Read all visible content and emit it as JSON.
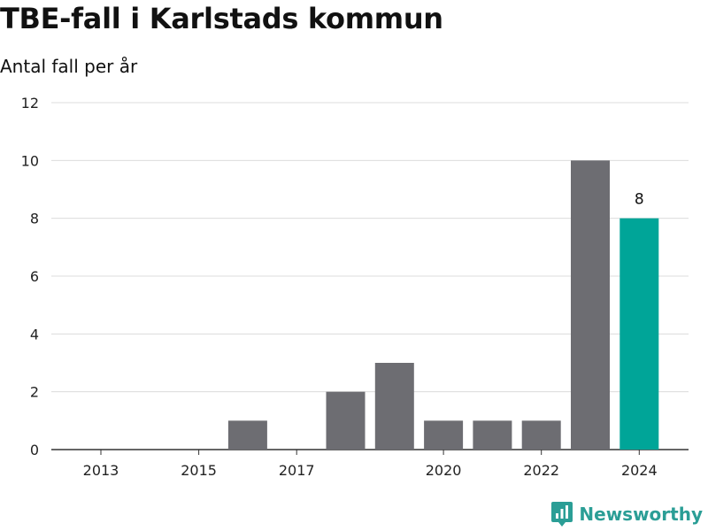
{
  "title": "TBE-fall i Karlstads kommun",
  "subtitle": "Antal fall per år",
  "brand": {
    "name": "Newsworthy",
    "icon": "newsworthy-logo-icon"
  },
  "colors": {
    "bar": "#6d6d72",
    "highlight": "#00a598",
    "grid": "#dcdcdc",
    "axis": "#333333",
    "brand": "#2b9e96"
  },
  "chart_data": {
    "type": "bar",
    "categories": [
      "2013",
      "2014",
      "2015",
      "2016",
      "2017",
      "2018",
      "2019",
      "2020",
      "2021",
      "2022",
      "2023",
      "2024"
    ],
    "x_tick_labels": [
      "2013",
      "2015",
      "2017",
      "2020",
      "2022",
      "2024"
    ],
    "values": [
      0,
      0,
      0,
      1,
      0,
      2,
      3,
      1,
      1,
      1,
      10,
      8
    ],
    "highlight_category": "2024",
    "data_labels": [
      {
        "category": "2024",
        "text": "8"
      }
    ],
    "y_ticks": [
      0,
      2,
      4,
      6,
      8,
      10,
      12
    ],
    "ylim": [
      0,
      12
    ],
    "grid": true,
    "legend": "none",
    "xlabel": "",
    "ylabel": ""
  }
}
